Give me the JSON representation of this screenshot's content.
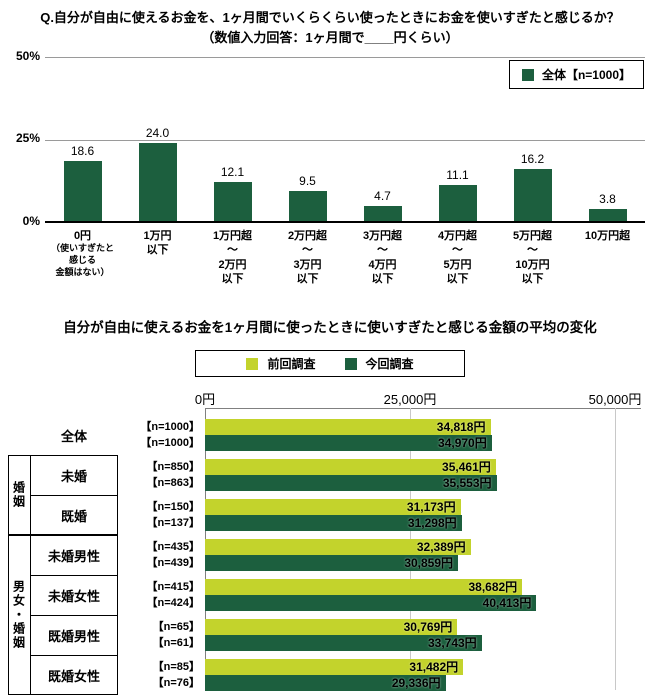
{
  "chart_data": [
    {
      "type": "bar",
      "title": "Q.自分が自由に使えるお金を、1ヶ月間でいくらくらい使ったときにお金を使いすぎたと感じるか？",
      "subtitle": "（数値入力回答：1ヶ月間で____円くらい）",
      "legend_label": "全体【n=1000】",
      "bar_color": "#1c5f3e",
      "ylim": [
        0,
        50
      ],
      "yticks": [
        "0%",
        "25%",
        "50%"
      ],
      "grid": true,
      "legend_position": "top-right",
      "categories": [
        [
          "0円",
          "（使いすぎたと",
          "感じる",
          "金額はない）"
        ],
        [
          "1万円",
          "以下"
        ],
        [
          "1万円超",
          "～",
          "2万円",
          "以下"
        ],
        [
          "2万円超",
          "～",
          "3万円",
          "以下"
        ],
        [
          "3万円超",
          "～",
          "4万円",
          "以下"
        ],
        [
          "4万円超",
          "～",
          "5万円",
          "以下"
        ],
        [
          "5万円超",
          "～",
          "10万円",
          "以下"
        ],
        [
          "10万円超"
        ]
      ],
      "values": [
        18.6,
        24.0,
        12.1,
        9.5,
        4.7,
        11.1,
        16.2,
        3.8
      ],
      "value_labels": [
        "18.6",
        "24.0",
        "12.1",
        "9.5",
        "4.7",
        "11.1",
        "16.2",
        "3.8"
      ]
    },
    {
      "type": "bar-horizontal",
      "title": "自分が自由に使えるお金を1ヶ月間に使ったときに使いすぎたと感じる金額の平均の変化",
      "legend": [
        "前回調査",
        "今回調査"
      ],
      "legend_position": "top-center",
      "colors": {
        "prev": "#c3d32c",
        "curr": "#1c5f3e"
      },
      "xlim": [
        0,
        50000
      ],
      "xticks": [
        "0円",
        "25,000円",
        "50,000円"
      ],
      "groups": [
        {
          "label": "婚姻",
          "row_start": 1,
          "row_count": 2
        },
        {
          "label": "男女・婚姻",
          "row_start": 3,
          "row_count": 4
        }
      ],
      "rows": [
        {
          "label": "全体",
          "prev_n": "【n=1000】",
          "prev": 34818,
          "prev_label": "34,818円",
          "curr_n": "【n=1000】",
          "curr": 34970,
          "curr_label": "34,970円"
        },
        {
          "label": "未婚",
          "prev_n": "【n=850】",
          "prev": 35461,
          "prev_label": "35,461円",
          "curr_n": "【n=863】",
          "curr": 35553,
          "curr_label": "35,553円"
        },
        {
          "label": "既婚",
          "prev_n": "【n=150】",
          "prev": 31173,
          "prev_label": "31,173円",
          "curr_n": "【n=137】",
          "curr": 31298,
          "curr_label": "31,298円"
        },
        {
          "label": "未婚男性",
          "prev_n": "【n=435】",
          "prev": 32389,
          "prev_label": "32,389円",
          "curr_n": "【n=439】",
          "curr": 30859,
          "curr_label": "30,859円"
        },
        {
          "label": "未婚女性",
          "prev_n": "【n=415】",
          "prev": 38682,
          "prev_label": "38,682円",
          "curr_n": "【n=424】",
          "curr": 40413,
          "curr_label": "40,413円"
        },
        {
          "label": "既婚男性",
          "prev_n": "【n=65】",
          "prev": 30769,
          "prev_label": "30,769円",
          "curr_n": "【n=61】",
          "curr": 33743,
          "curr_label": "33,743円"
        },
        {
          "label": "既婚女性",
          "prev_n": "【n=85】",
          "prev": 31482,
          "prev_label": "31,482円",
          "curr_n": "【n=76】",
          "curr": 29336,
          "curr_label": "29,336円"
        }
      ]
    }
  ]
}
